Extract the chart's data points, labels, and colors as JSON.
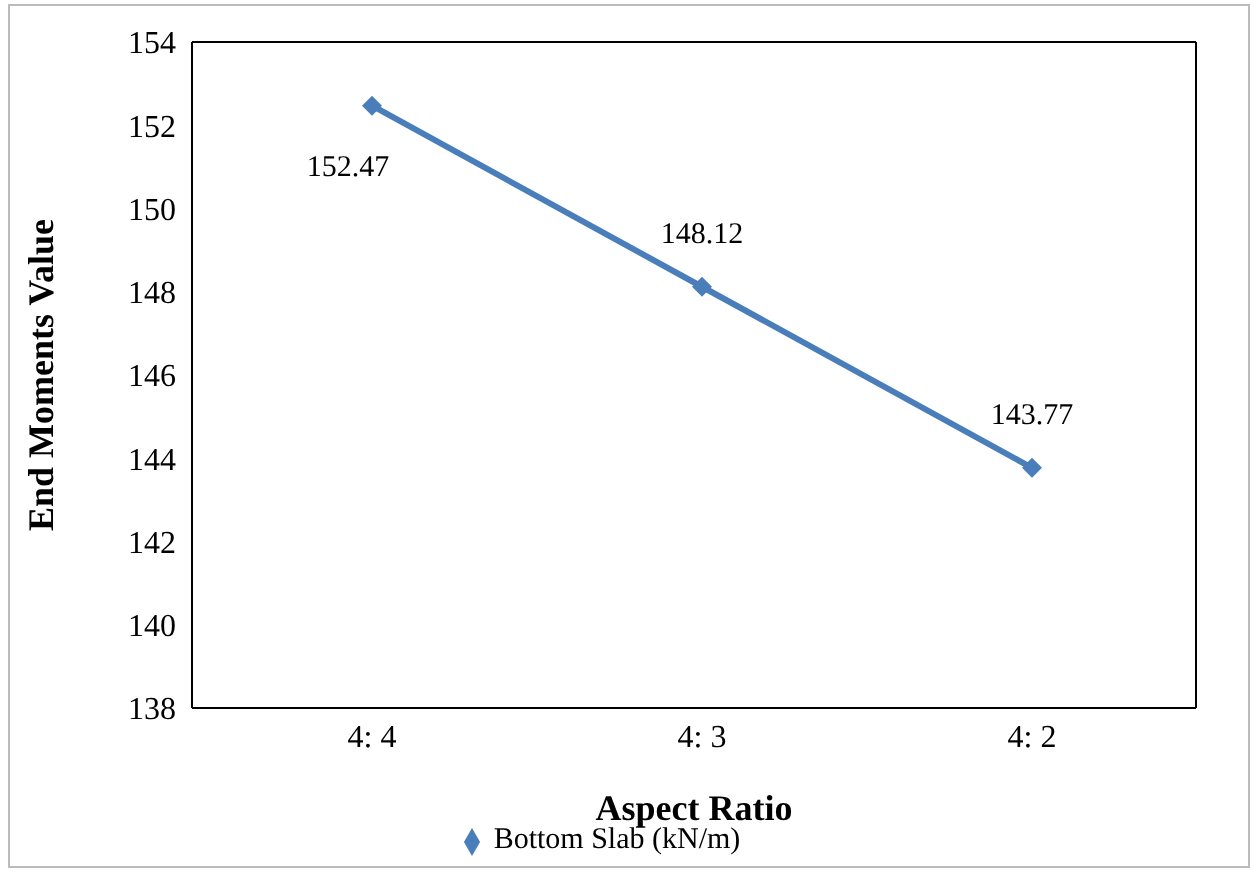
{
  "chart_data": {
    "type": "line",
    "xlabel": "Aspect Ratio",
    "ylabel": "End Moments Value",
    "categories": [
      "4: 4",
      "4: 3",
      "4: 2"
    ],
    "series": [
      {
        "name": "Bottom Slab (kN/m)",
        "color": "#4a7ebb",
        "values": [
          152.47,
          148.12,
          143.77
        ]
      }
    ],
    "ylim": [
      138,
      154
    ],
    "yticks": [
      138,
      140,
      142,
      144,
      146,
      148,
      150,
      152,
      154
    ],
    "data_labels": true,
    "marker": "diamond",
    "line_style": "solid",
    "legend": "bottom",
    "grid": false
  }
}
